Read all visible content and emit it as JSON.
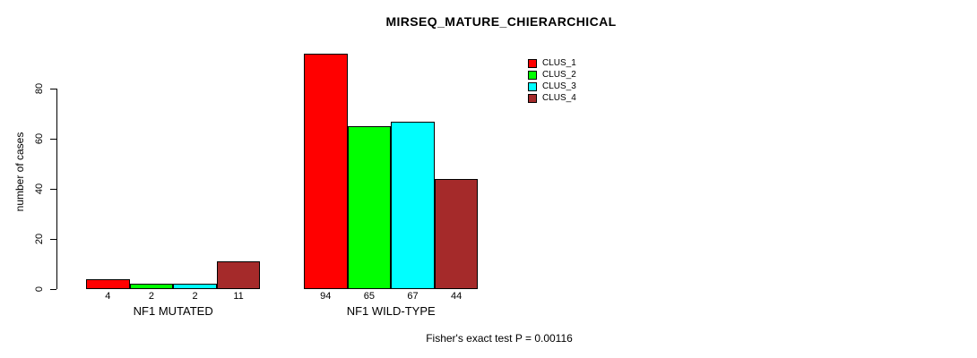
{
  "chart_data": {
    "type": "bar",
    "title": "MIRSEQ_MATURE_CHIERARCHICAL",
    "ylabel": "number of cases",
    "xlabel": "",
    "categories": [
      "NF1 MUTATED",
      "NF1 WILD-TYPE"
    ],
    "series": [
      {
        "name": "CLUS_1",
        "color": "#ff0000",
        "values": [
          4,
          94
        ]
      },
      {
        "name": "CLUS_2",
        "color": "#00ff00",
        "values": [
          2,
          65
        ]
      },
      {
        "name": "CLUS_3",
        "color": "#00ffff",
        "values": [
          2,
          67
        ]
      },
      {
        "name": "CLUS_4",
        "color": "#a52a2a",
        "values": [
          11,
          44
        ]
      }
    ],
    "bar_labels": [
      [
        4,
        2,
        2,
        11
      ],
      [
        94,
        65,
        67,
        44
      ]
    ],
    "yticks": [
      0,
      20,
      40,
      60,
      80
    ],
    "ylim": [
      0,
      94
    ],
    "grid": false,
    "legend_position": "top-right",
    "legend_entries": [
      "CLUS_1",
      "CLUS_2",
      "CLUS_3",
      "CLUS_4"
    ],
    "annotation": "Fisher's exact test P = 0.00116"
  },
  "colors": {
    "background": "#ffffff",
    "axis": "#000000",
    "bar_border": "#000000",
    "text": "#000000"
  }
}
